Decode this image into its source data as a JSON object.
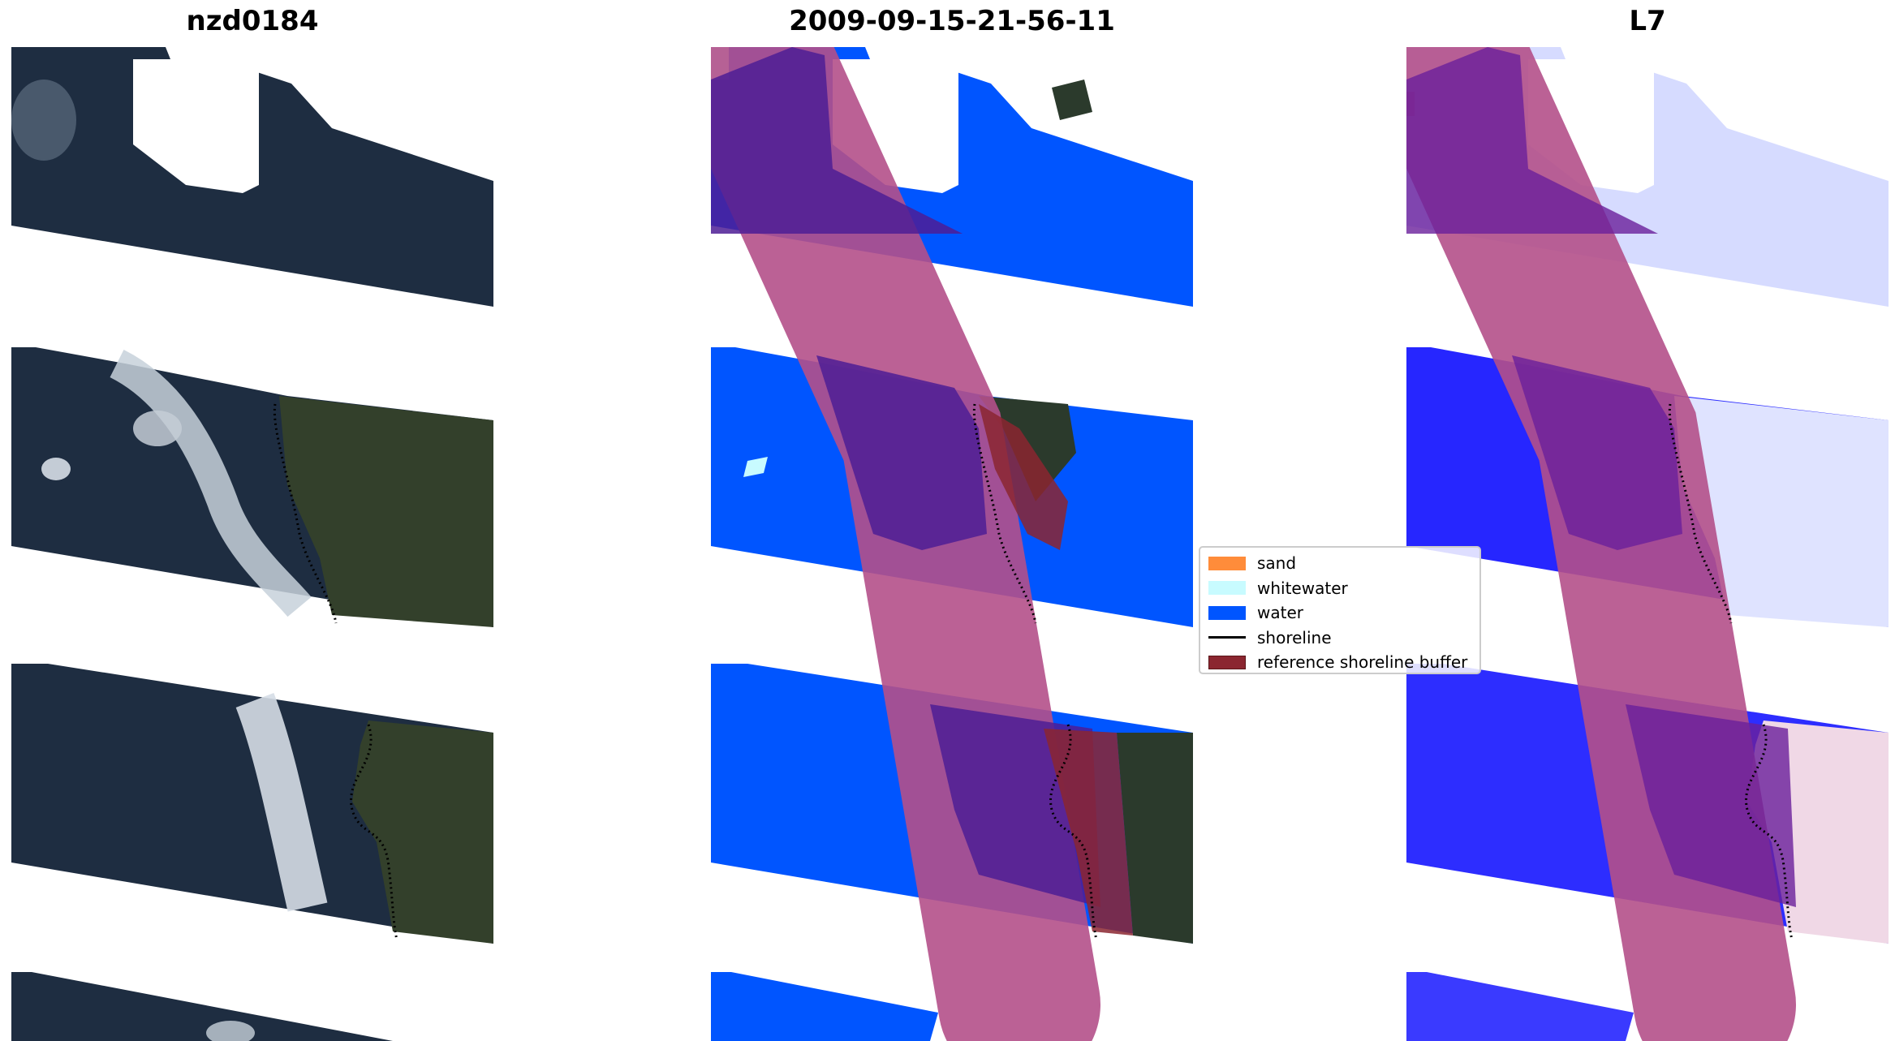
{
  "panels": [
    {
      "title": "nzd0184"
    },
    {
      "title": "2009-09-15-21-56-11"
    },
    {
      "title": "L7"
    }
  ],
  "legend": {
    "items": [
      {
        "label": "sand",
        "color": "#ff8c3a",
        "kind": "patch"
      },
      {
        "label": "whitewater",
        "color": "#c8fbff",
        "kind": "patch"
      },
      {
        "label": "water",
        "color": "#0055ff",
        "kind": "patch"
      },
      {
        "label": "shoreline",
        "color": "#000000",
        "kind": "line"
      },
      {
        "label": "reference shoreline buffer",
        "color": "#8b2630",
        "kind": "patch"
      }
    ]
  },
  "colors": {
    "ocean": "#1d2c43",
    "land": "#34402a",
    "cloud": "#d9e1ea",
    "water_class": "#0055ff",
    "whitewater_class": "#c8fbff",
    "buffer": "#b4508a",
    "buffer_overlap": "#4d1d95",
    "index_water": "#2a2aff",
    "index_land": "#e8ecff"
  }
}
